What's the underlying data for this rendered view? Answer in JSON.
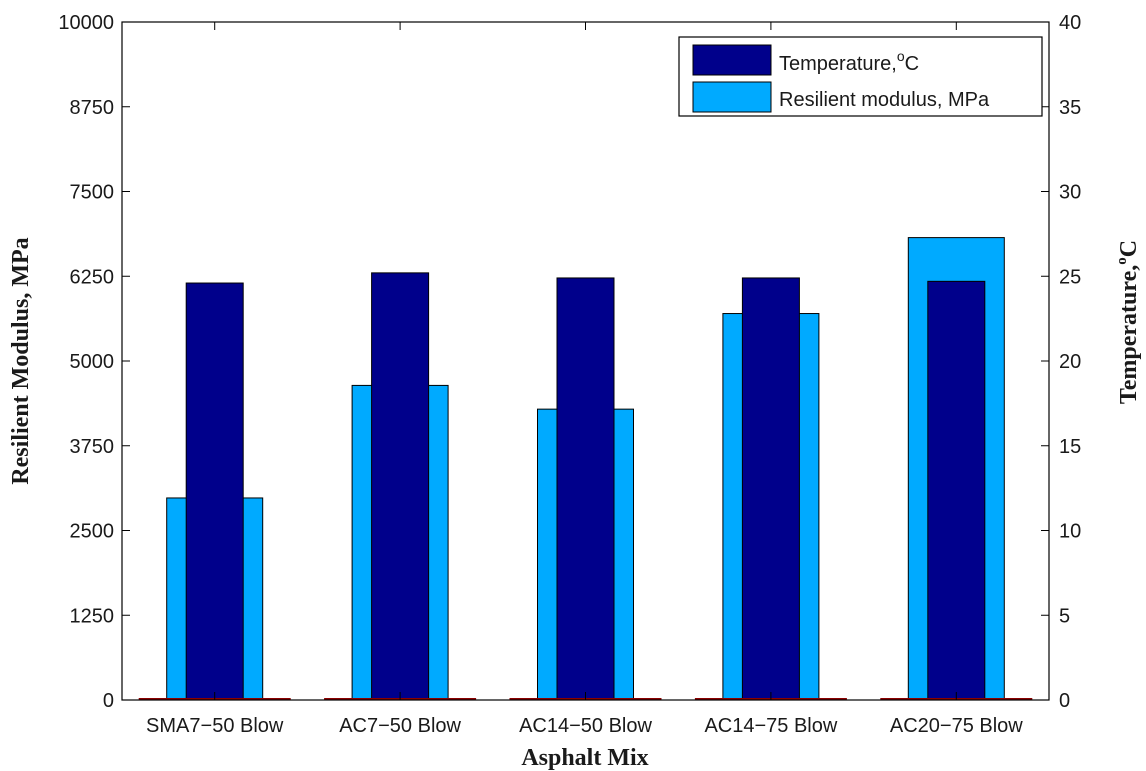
{
  "chart_data": {
    "type": "bar",
    "title": "",
    "xlabel": "Asphalt Mix",
    "ylabel_left": "Resilient Modulus, MPa",
    "ylabel_right": "Temperature,",
    "ylabel_right_unit": "C",
    "ylabel_right_degree": "o",
    "categories": [
      "SMA7−50 Blow",
      "AC7−50 Blow",
      "AC14−50 Blow",
      "AC14−75 Blow",
      "AC20−75 Blow"
    ],
    "ylim_left": [
      0,
      10000
    ],
    "yticks_left": [
      "0",
      "1250",
      "2500",
      "3750",
      "5000",
      "6250",
      "7500",
      "8750",
      "10000"
    ],
    "ylim_right": [
      0,
      40
    ],
    "yticks_right": [
      "0",
      "5",
      "10",
      "15",
      "20",
      "25",
      "30",
      "35",
      "40"
    ],
    "series": [
      {
        "name": "Resilient modulus, MPa",
        "axis": "left",
        "values": [
          2980,
          4640,
          4290,
          5700,
          6820
        ],
        "color": "#00aaff"
      },
      {
        "name": "Temperature,",
        "name_degree": "o",
        "name_unit": "C",
        "axis": "right",
        "values": [
          24.6,
          25.2,
          24.9,
          24.9,
          24.7
        ],
        "color": "#00008b"
      }
    ],
    "legend": {
      "placement": "top-right"
    },
    "grid": false
  }
}
